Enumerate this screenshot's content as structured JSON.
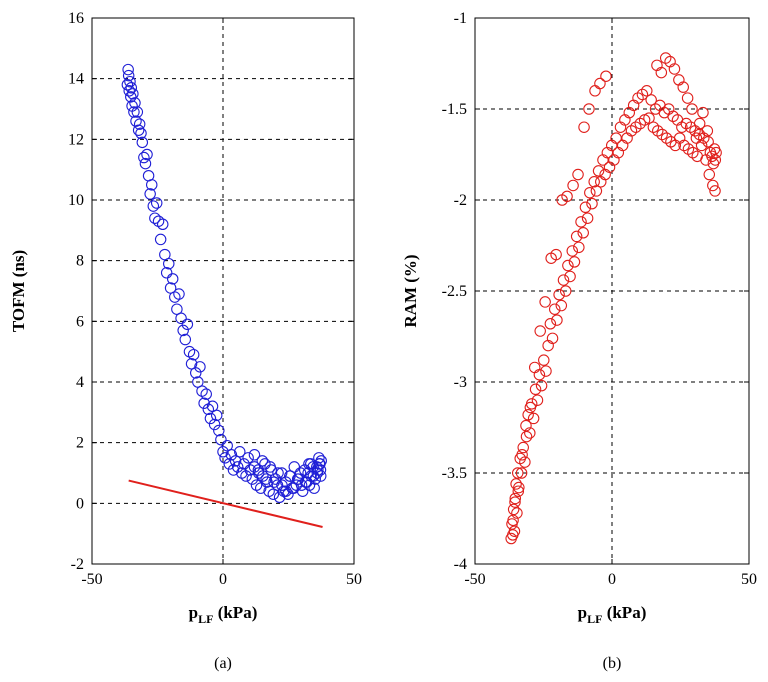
{
  "chart_data": [
    {
      "type": "scatter",
      "panel_label": "(a)",
      "xlabel": "p",
      "xlabel_sub": "LF",
      "xlabel_unit": " (kPa)",
      "ylabel": "TOFM (ns)",
      "xlim": [
        -50,
        50
      ],
      "ylim": [
        -2,
        16
      ],
      "xticks": [
        -50,
        0,
        50
      ],
      "yticks": [
        -2,
        0,
        2,
        4,
        6,
        8,
        10,
        12,
        14,
        16
      ],
      "xtick_labels": [
        "-50",
        "0",
        "50"
      ],
      "ytick_labels": [
        "-2",
        "0",
        "2",
        "4",
        "6",
        "8",
        "10",
        "12",
        "14",
        "16"
      ],
      "grid": true,
      "colors": {
        "points": "#1f1fd6",
        "line": "#e0201c"
      },
      "series": [
        {
          "marker": "circle",
          "x": [
            -36.5,
            -36.2,
            -36,
            -35.8,
            -35.5,
            -35.2,
            -35,
            -34.7,
            -34.4,
            -34,
            -33.6,
            -33.2,
            -32.7,
            -32.2,
            -31.8,
            -31.3,
            -30.8,
            -30.2,
            -29.6,
            -29,
            -28.4,
            -27.8,
            -27.2,
            -26.6,
            -26,
            -25.3,
            -24.6,
            -23.8,
            -23,
            -22.2,
            -21.5,
            -20.7,
            -20,
            -19.2,
            -18.4,
            -17.6,
            -16.8,
            -16,
            -15.2,
            -14.4,
            -13.6,
            -12.8,
            -12,
            -11.2,
            -10.4,
            -9.6,
            -8.8,
            -8,
            -7.2,
            -6.4,
            -5.6,
            -4.8,
            -4,
            -3.2,
            -2.4,
            -1.6,
            -0.8,
            0,
            0.8,
            1.6,
            2.4,
            3.2,
            4,
            4.8,
            5.6,
            6.4,
            7.2,
            8,
            8.8,
            9.6,
            10.4,
            11.2,
            12,
            12.8,
            13.6,
            14.4,
            15.2,
            16,
            16.8,
            17.6,
            18.4,
            19.2,
            20,
            20.8,
            21.6,
            22.4,
            23.2,
            24,
            24.8,
            25.6,
            26.4,
            27.2,
            28,
            28.8,
            29.6,
            30.4,
            31.2,
            32,
            32.8,
            33.6,
            34.4,
            35.2,
            36,
            36.8,
            37.2,
            37.5,
            33,
            34.5,
            35.8,
            36.6,
            37,
            31.5,
            32.5,
            33.5,
            34.8,
            36.2,
            37.3,
            30,
            28.5,
            27,
            25.5,
            24,
            22.5,
            21,
            19.5,
            18,
            16.5,
            15,
            13.5,
            12
          ],
          "y": [
            13.8,
            14.3,
            14.1,
            13.6,
            13.9,
            13.4,
            13.7,
            13.1,
            13.5,
            12.9,
            13.2,
            12.6,
            12.9,
            12.3,
            12.5,
            12.2,
            11.9,
            11.4,
            11.2,
            11.5,
            10.8,
            10.2,
            10.5,
            9.8,
            9.4,
            9.9,
            9.3,
            8.7,
            9.2,
            8.2,
            7.6,
            7.9,
            7.1,
            7.4,
            6.8,
            6.4,
            6.9,
            6.1,
            5.7,
            5.4,
            5.9,
            5,
            4.6,
            4.9,
            4.3,
            4,
            4.5,
            3.7,
            3.3,
            3.6,
            3.1,
            2.8,
            3.2,
            2.6,
            2.9,
            2.4,
            2.1,
            1.7,
            1.5,
            1.9,
            1.3,
            1.6,
            1.1,
            1.4,
            1.2,
            1.7,
            1,
            1.3,
            0.9,
            1.5,
            1.1,
            0.8,
            1.2,
            0.6,
            1,
            0.5,
            0.9,
            1.3,
            0.7,
            0.4,
            1.1,
            0.3,
            0.8,
            0.6,
            0.2,
            1,
            0.4,
            0.7,
            0.3,
            0.9,
            0.5,
            1.2,
            0.6,
            0.8,
            1,
            0.4,
            1.1,
            0.7,
            1.3,
            0.9,
            1.2,
            0.8,
            1,
            1.3,
            1.1,
            1.4,
            0.6,
            0.9,
            1.2,
            1.5,
            1.3,
            0.7,
            1,
            1.3,
            0.5,
            1.1,
            0.9,
            0.6,
            0.8,
            0.5,
            0.9,
            0.4,
            0.6,
            1,
            0.7,
            1.2,
            0.8,
            1.4,
            1.1,
            1.6
          ]
        },
        {
          "marker": "line",
          "x": [
            -36,
            38
          ],
          "y": [
            0.75,
            -0.78
          ]
        }
      ]
    },
    {
      "type": "scatter",
      "panel_label": "(b)",
      "xlabel": "p",
      "xlabel_sub": "LF",
      "xlabel_unit": " (kPa)",
      "ylabel": "RAM (%)",
      "xlim": [
        -50,
        50
      ],
      "ylim": [
        -4,
        -1
      ],
      "xticks": [
        -50,
        0,
        50
      ],
      "yticks": [
        -4,
        -3.5,
        -3,
        -2.5,
        -2,
        -1.5,
        -1
      ],
      "xtick_labels": [
        "-50",
        "0",
        "50"
      ],
      "ytick_labels": [
        "-4",
        "-3.5",
        "-3",
        "-2.5",
        "-2",
        "-1.5",
        "-1"
      ],
      "grid": true,
      "colors": {
        "points": "#e0201c"
      },
      "series": [
        {
          "marker": "circle",
          "x": [
            -36.8,
            -36.5,
            -36.2,
            -35.9,
            -35.6,
            -35.3,
            -35,
            -34.7,
            -34.4,
            -34,
            -33.5,
            -33,
            -32.4,
            -31.8,
            -31.2,
            -30.6,
            -30,
            -29.3,
            -28.6,
            -27.9,
            -27.2,
            -26.5,
            -25.7,
            -24.9,
            -24.1,
            -23.3,
            -22.5,
            -21.7,
            -20.9,
            -20.1,
            -19.3,
            -18.5,
            -17.7,
            -16.9,
            -16.1,
            -15.3,
            -14.5,
            -13.7,
            -12.9,
            -12.1,
            -11.3,
            -10.5,
            -9.7,
            -8.9,
            -8.1,
            -7.3,
            -6.5,
            -5.7,
            -4.9,
            -4.1,
            -3.3,
            -2.5,
            -1.7,
            -0.9,
            -0.1,
            0.7,
            1.5,
            2.3,
            3.1,
            3.9,
            4.7,
            5.5,
            6.3,
            7.1,
            7.9,
            8.7,
            9.5,
            10.3,
            11.1,
            11.9,
            12.7,
            13.5,
            14.3,
            15.1,
            15.9,
            16.7,
            17.5,
            18.3,
            19.1,
            19.9,
            20.7,
            21.5,
            22.3,
            23.1,
            23.9,
            24.7,
            25.5,
            26.3,
            27.1,
            27.9,
            28.7,
            29.5,
            30.3,
            31.1,
            31.9,
            32.7,
            33.5,
            34.3,
            35.1,
            35.9,
            36.5,
            37,
            37.4,
            37.7,
            38,
            35.5,
            36.8,
            37.6,
            34.8,
            33.2,
            32,
            30.8,
            29.2,
            27.6,
            26,
            24.4,
            22.8,
            21.2,
            19.6,
            18,
            16.4,
            -36.1,
            -35.4,
            -34.2,
            -32.8,
            -31.4,
            -29.8,
            -28.2,
            -26.2,
            -24.4,
            -22.2,
            -20.4,
            -18.2,
            -16.4,
            -14.2,
            -12.4,
            -10.2,
            -8.4,
            -6.2,
            -4.4,
            -2.2
          ],
          "y": [
            -3.86,
            -3.78,
            -3.84,
            -3.7,
            -3.82,
            -3.64,
            -3.56,
            -3.72,
            -3.5,
            -3.58,
            -3.42,
            -3.5,
            -3.36,
            -3.44,
            -3.3,
            -3.18,
            -3.28,
            -3.12,
            -3.2,
            -3.04,
            -3.1,
            -2.96,
            -3.02,
            -2.88,
            -2.94,
            -2.8,
            -2.68,
            -2.76,
            -2.6,
            -2.66,
            -2.52,
            -2.58,
            -2.44,
            -2.5,
            -2.36,
            -2.42,
            -2.28,
            -2.34,
            -2.2,
            -2.26,
            -2.12,
            -2.18,
            -2.04,
            -2.1,
            -1.96,
            -2.02,
            -1.9,
            -1.95,
            -1.84,
            -1.9,
            -1.78,
            -1.86,
            -1.74,
            -1.82,
            -1.7,
            -1.78,
            -1.66,
            -1.74,
            -1.6,
            -1.7,
            -1.56,
            -1.66,
            -1.52,
            -1.62,
            -1.48,
            -1.6,
            -1.44,
            -1.58,
            -1.42,
            -1.56,
            -1.4,
            -1.55,
            -1.45,
            -1.6,
            -1.5,
            -1.62,
            -1.48,
            -1.64,
            -1.52,
            -1.66,
            -1.5,
            -1.68,
            -1.54,
            -1.7,
            -1.56,
            -1.66,
            -1.6,
            -1.7,
            -1.58,
            -1.72,
            -1.6,
            -1.74,
            -1.62,
            -1.76,
            -1.64,
            -1.7,
            -1.66,
            -1.78,
            -1.68,
            -1.74,
            -1.76,
            -1.8,
            -1.72,
            -1.78,
            -1.74,
            -1.86,
            -1.92,
            -1.95,
            -1.62,
            -1.52,
            -1.58,
            -1.66,
            -1.5,
            -1.44,
            -1.38,
            -1.34,
            -1.28,
            -1.24,
            -1.22,
            -1.3,
            -1.26,
            -3.76,
            -3.66,
            -3.6,
            -3.4,
            -3.24,
            -3.14,
            -2.92,
            -2.72,
            -2.56,
            -2.32,
            -2.3,
            -2.0,
            -1.98,
            -1.92,
            -1.86,
            -1.6,
            -1.5,
            -1.4,
            -1.36,
            -1.32
          ]
        }
      ]
    }
  ]
}
